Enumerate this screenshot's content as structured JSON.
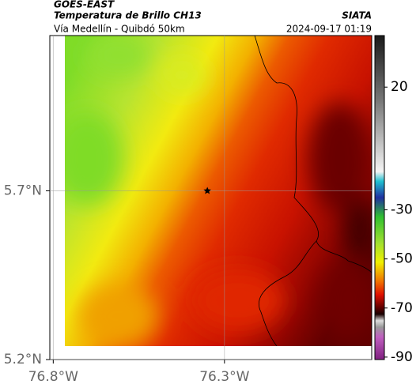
{
  "header": {
    "satellite": "GOES-EAST",
    "title": "Temperatura de Brillo CH13",
    "source": "SIATA",
    "route": "Vía Medellín - Quibdó 50km",
    "datetime": "2024-09-17 01:19"
  },
  "map": {
    "xlim": [
      -76.81,
      -75.87
    ],
    "ylim": [
      5.2,
      6.16
    ],
    "xticks": [
      {
        "value": -76.8,
        "label": "76.8°W"
      },
      {
        "value": -76.3,
        "label": "76.3°W"
      }
    ],
    "yticks": [
      {
        "value": 5.2,
        "label": "5.2°N"
      },
      {
        "value": 5.7,
        "label": "5.7°N"
      }
    ],
    "grid": true,
    "points": [
      {
        "lon": -76.35,
        "lat": 5.7
      }
    ]
  },
  "colorbar": {
    "lim": [
      -91,
      41
    ],
    "ticks": [
      20,
      -30,
      -50,
      -70,
      -90
    ]
  }
}
